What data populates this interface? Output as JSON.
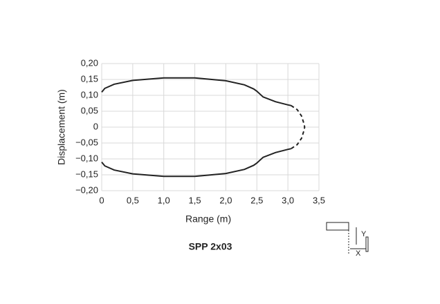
{
  "chart_data": {
    "type": "line",
    "xlabel": "Range (m)",
    "ylabel": "Displacement (m)",
    "caption": "SPP 2x03",
    "inset_labels": [
      "Y",
      "X"
    ],
    "xlim": [
      0,
      3.5
    ],
    "ylim": [
      -0.2,
      0.2
    ],
    "grid": true,
    "xticks": [
      0,
      {
        "value": 0.5,
        "label": "0,5"
      },
      {
        "value": 1,
        "label": "1,0"
      },
      {
        "value": 1.5,
        "label": "1,5"
      },
      {
        "value": 2,
        "label": "2,0"
      },
      {
        "value": 2.5,
        "label": "2,5"
      },
      {
        "value": 3,
        "label": "3,0"
      },
      {
        "value": 3.5,
        "label": "3,5"
      }
    ],
    "yticks": [
      {
        "value": -0.2,
        "label": "−0,20"
      },
      {
        "value": -0.15,
        "label": "−0,15"
      },
      {
        "value": -0.1,
        "label": "−0,10"
      },
      {
        "value": -0.05,
        "label": "−0,05"
      },
      0,
      {
        "value": 0.05,
        "label": "0,05"
      },
      {
        "value": 0.1,
        "label": "0,10"
      },
      {
        "value": 0.15,
        "label": "0,15"
      },
      {
        "value": 0.2,
        "label": "0,20"
      }
    ],
    "series": [
      {
        "color": "#222222",
        "dashed": false,
        "x": [
          0,
          0.05,
          0.2,
          0.5,
          1.0,
          1.5,
          2.0,
          2.3,
          2.45,
          2.5,
          2.6,
          2.8,
          3.0,
          3.05
        ],
        "values": [
          0.11,
          0.122,
          0.135,
          0.147,
          0.155,
          0.155,
          0.146,
          0.133,
          0.12,
          0.113,
          0.095,
          0.08,
          0.07,
          0.068
        ]
      },
      {
        "color": "#222222",
        "dashed": false,
        "x": [
          0,
          0.05,
          0.2,
          0.5,
          1.0,
          1.5,
          2.0,
          2.3,
          2.45,
          2.5,
          2.6,
          2.8,
          3.0,
          3.05
        ],
        "values": [
          -0.11,
          -0.122,
          -0.135,
          -0.147,
          -0.155,
          -0.155,
          -0.146,
          -0.133,
          -0.12,
          -0.113,
          -0.095,
          -0.08,
          -0.07,
          -0.068
        ]
      },
      {
        "color": "#222222",
        "dashed": true,
        "x": [
          3.05,
          3.15,
          3.22,
          3.26,
          3.27,
          3.26,
          3.22,
          3.15,
          3.05
        ],
        "values": [
          0.068,
          0.055,
          0.035,
          0.01,
          0,
          -0.01,
          -0.035,
          -0.055,
          -0.068
        ]
      }
    ]
  }
}
